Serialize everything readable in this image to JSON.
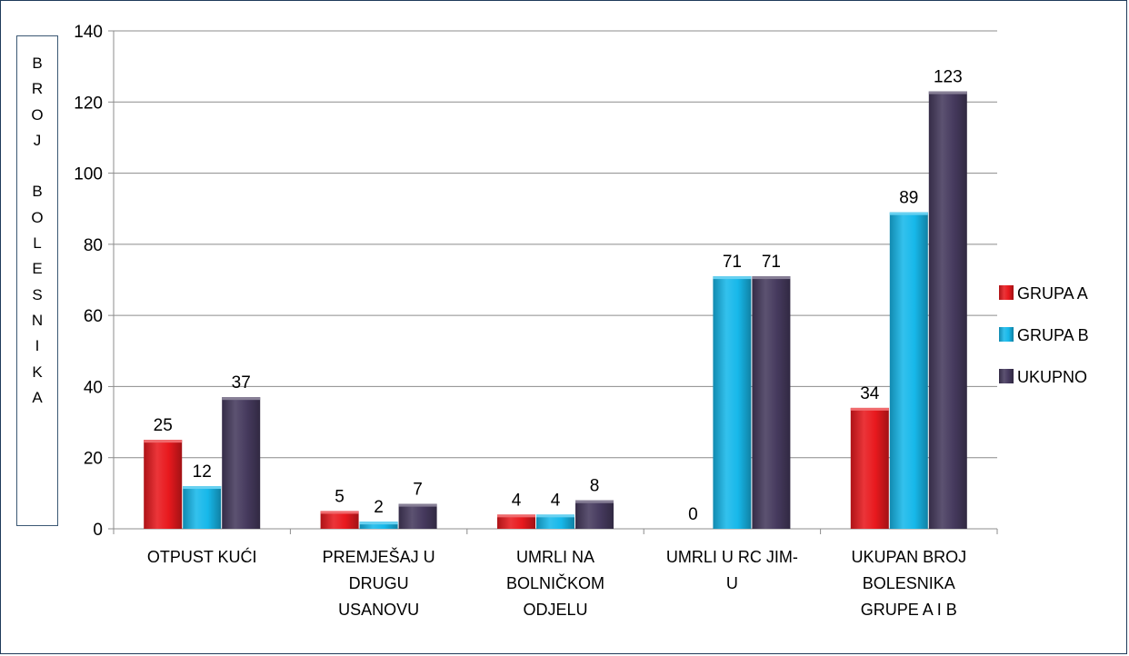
{
  "chart_data": {
    "type": "bar",
    "ylabel": "B\nR\nO\nJ\n\nB\nO\nL\nE\nS\nN\nI\nK\nA",
    "ylim": [
      0,
      140
    ],
    "yticks": [
      0,
      20,
      40,
      60,
      80,
      100,
      120,
      140
    ],
    "grid": true,
    "legend_position": "right",
    "categories": [
      [
        "OTPUST KUĆI"
      ],
      [
        "PREMJEŠAJ U",
        "DRUGU",
        "USANOVU"
      ],
      [
        "UMRLI NA",
        "BOLNIČKOM",
        "ODJELU"
      ],
      [
        "UMRLI U RC JIM-",
        "U"
      ],
      [
        "UKUPAN BROJ",
        "BOLESNIKA",
        "GRUPE A I B"
      ]
    ],
    "series": [
      {
        "name": "GRUPA A",
        "color": "#e8191e",
        "values": [
          25,
          5,
          4,
          0,
          34
        ],
        "labels": [
          "25",
          "5",
          "4",
          "0",
          "34"
        ]
      },
      {
        "name": "GRUPA B",
        "color": "#17b8ea",
        "values": [
          12,
          2,
          4,
          71,
          89
        ],
        "labels": [
          "12",
          "2",
          "4",
          "71",
          "89"
        ]
      },
      {
        "name": "UKUPNO",
        "color": "#463a5e",
        "values": [
          37,
          7,
          8,
          71,
          123
        ],
        "labels": [
          "37",
          "7",
          "8",
          "71",
          "123"
        ]
      }
    ]
  }
}
